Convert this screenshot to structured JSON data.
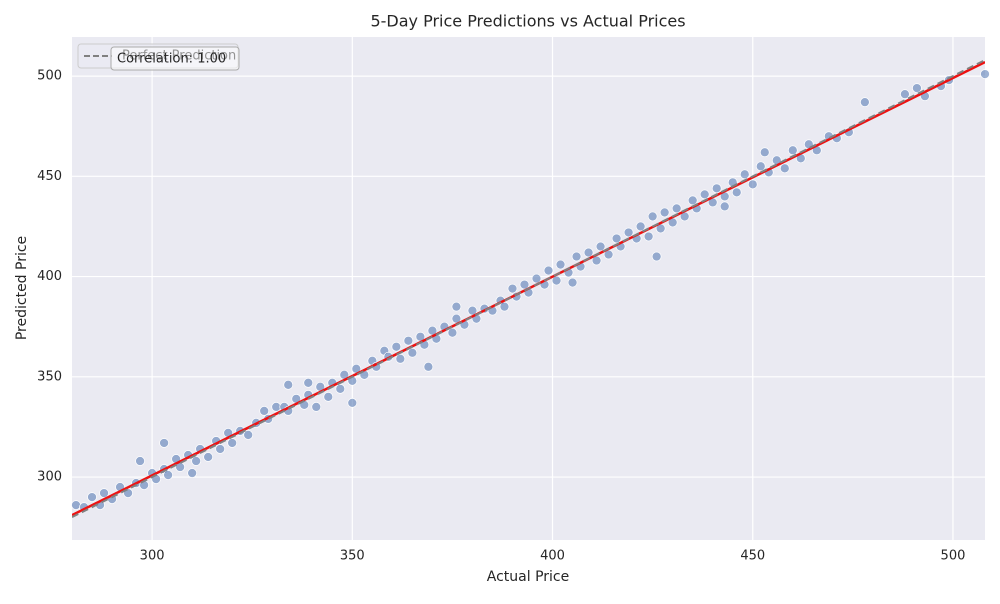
{
  "chart_data": {
    "type": "scatter",
    "title": "5-Day Price Predictions vs Actual Prices",
    "x_label": "Actual Price",
    "y_label": "Predicted Price",
    "annotation": "Correlation: 1.00",
    "color": "#4c72b0",
    "grid": true,
    "legend": "upper left",
    "xlim": [
      280,
      508
    ],
    "ylim": [
      268.6,
      519.5
    ],
    "xticks": [
      300,
      350,
      400,
      450,
      500
    ],
    "yticks": [
      300,
      350,
      400,
      450,
      500
    ],
    "x": [
      281,
      283,
      285,
      287,
      288,
      290,
      292,
      294,
      296,
      298,
      300,
      301,
      303,
      304,
      306,
      307,
      309,
      311,
      312,
      314,
      316,
      317,
      319,
      320,
      322,
      324,
      326,
      328,
      329,
      331,
      333,
      334,
      336,
      338,
      339,
      341,
      342,
      344,
      345,
      347,
      348,
      350,
      351,
      353,
      355,
      356,
      358,
      359,
      361,
      362,
      364,
      365,
      367,
      368,
      370,
      371,
      373,
      375,
      376,
      378,
      380,
      381,
      383,
      385,
      387,
      388,
      390,
      391,
      393,
      394,
      396,
      398,
      399,
      401,
      402,
      404,
      406,
      407,
      409,
      411,
      412,
      414,
      416,
      417,
      419,
      421,
      422,
      424,
      425,
      427,
      428,
      430,
      431,
      433,
      435,
      436,
      438,
      440,
      441,
      443,
      445,
      446,
      448,
      450,
      452,
      454,
      456,
      458,
      460,
      462,
      464,
      466,
      469,
      471,
      474,
      478,
      488,
      491,
      493,
      497,
      499,
      508,
      297,
      303,
      350,
      369,
      405,
      426,
      376,
      334,
      310,
      339,
      443,
      453
    ],
    "values": [
      286,
      285,
      290,
      286,
      292,
      289,
      295,
      292,
      297,
      296,
      302,
      299,
      304,
      301,
      309,
      305,
      311,
      308,
      314,
      310,
      318,
      314,
      322,
      317,
      323,
      321,
      327,
      333,
      329,
      335,
      335,
      333,
      339,
      336,
      341,
      335,
      345,
      340,
      347,
      344,
      351,
      348,
      354,
      351,
      358,
      355,
      363,
      360,
      365,
      359,
      368,
      362,
      370,
      366,
      373,
      369,
      375,
      372,
      379,
      376,
      383,
      379,
      384,
      383,
      388,
      385,
      394,
      390,
      396,
      392,
      399,
      396,
      403,
      398,
      406,
      402,
      410,
      405,
      412,
      408,
      415,
      411,
      419,
      415,
      422,
      419,
      425,
      420,
      430,
      424,
      432,
      427,
      434,
      430,
      438,
      434,
      441,
      437,
      444,
      440,
      447,
      442,
      451,
      446,
      455,
      452,
      458,
      454,
      463,
      459,
      466,
      463,
      470,
      469,
      472,
      487,
      491,
      494,
      490,
      495,
      498,
      501,
      308,
      317,
      337,
      355,
      397,
      410,
      385,
      346,
      302,
      347,
      435,
      462
    ],
    "lines": [
      {
        "name": "Perfect Prediction",
        "x": [
          280,
          508
        ],
        "values": [
          280,
          508
        ],
        "color": "#808080",
        "dashed": true
      },
      {
        "x": [
          280,
          508
        ],
        "values": [
          281,
          507
        ],
        "color": "#ee1111",
        "dashed": false
      }
    ]
  }
}
